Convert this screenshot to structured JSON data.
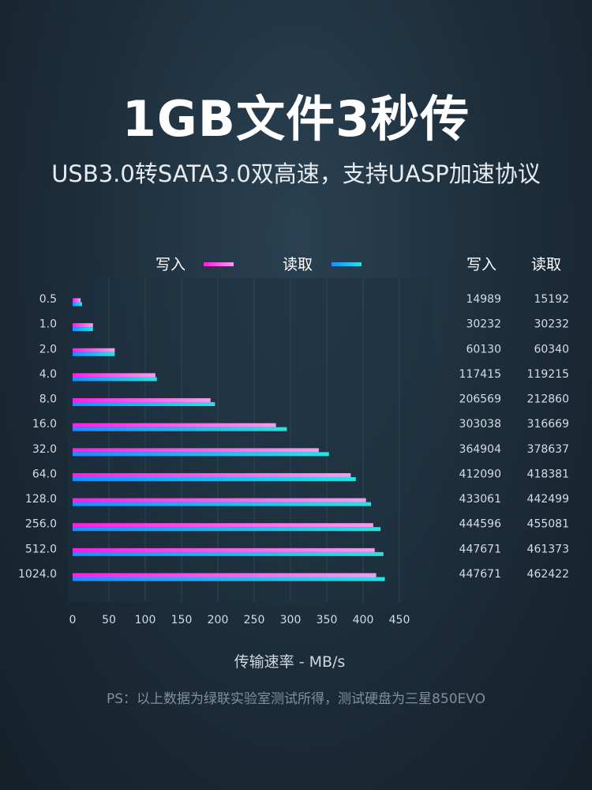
{
  "header": {
    "title": "1GB文件3秒传",
    "subtitle": "USB3.0转SATA3.0双高速，支持UASP加速协议"
  },
  "legend": {
    "write": "写入",
    "read": "读取"
  },
  "table_headers": {
    "write": "写入",
    "read": "读取"
  },
  "footer": {
    "axis_title": "传输速率 - MB/s",
    "note": "PS：以上数据为绿联实验室测试所得，测试硬盘为三星850EVO"
  },
  "colors": {
    "write_start": "#ff1ee6",
    "write_end": "#f79bef",
    "read_start": "#1a8dff",
    "read_end": "#27e3e3",
    "grid": "#2c4656",
    "plot_bg": "#1e3240"
  },
  "chart_data": {
    "type": "bar",
    "orientation": "horizontal",
    "categories": [
      "0.5",
      "1.0",
      "2.0",
      "4.0",
      "8.0",
      "16.0",
      "32.0",
      "64.0",
      "128.0",
      "256.0",
      "512.0",
      "1024.0"
    ],
    "series": [
      {
        "name": "写入",
        "values": [
          11,
          28,
          58,
          114,
          190,
          280,
          339,
          383,
          404,
          414,
          416,
          418
        ]
      },
      {
        "name": "读取",
        "values": [
          13,
          28,
          58,
          116,
          196,
          295,
          353,
          390,
          411,
          424,
          428,
          430
        ]
      }
    ],
    "table": {
      "write": [
        "14989",
        "30232",
        "60130",
        "117415",
        "206569",
        "303038",
        "364904",
        "412090",
        "433061",
        "444596",
        "447671",
        "447671"
      ],
      "read": [
        "15192",
        "30232",
        "60340",
        "119215",
        "212860",
        "316669",
        "378637",
        "418381",
        "442499",
        "455081",
        "461373",
        "462422"
      ]
    },
    "xticks": [
      0,
      50,
      100,
      150,
      200,
      250,
      300,
      350,
      400,
      450
    ],
    "xlim": [
      0,
      450
    ],
    "xlabel": "传输速率 - MB/s",
    "grid": true,
    "legend_position": "top"
  }
}
